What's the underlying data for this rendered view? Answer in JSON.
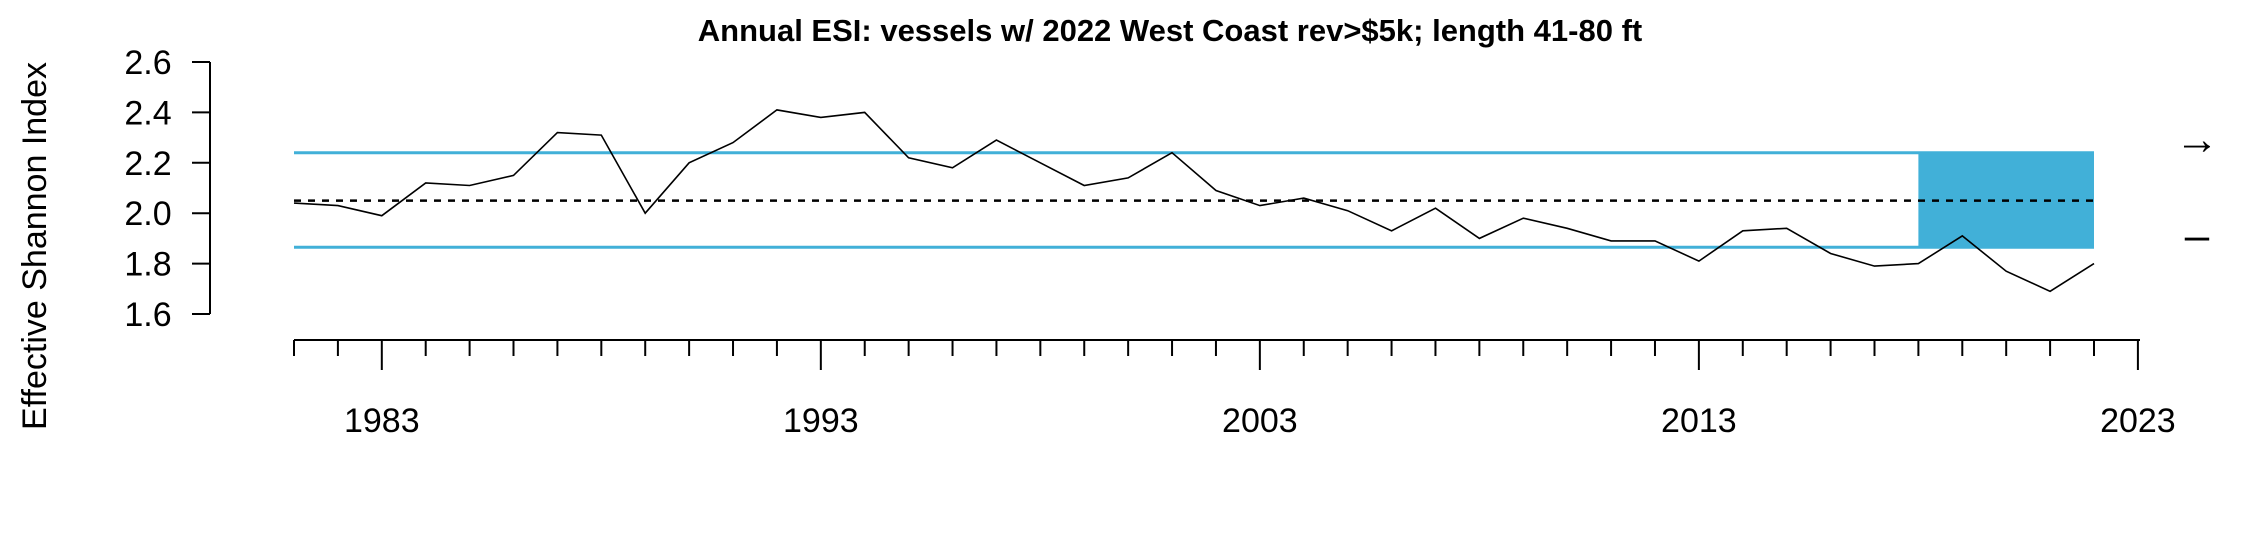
{
  "chart_data": {
    "type": "line",
    "title": "Annual ESI: vessels w/ 2022 West Coast rev>$5k; length 41-80 ft",
    "ylabel": "Effective Shannon Index",
    "xlabel": "",
    "ylim": [
      1.6,
      2.6
    ],
    "y_ticks": [
      "1.6",
      "1.8",
      "2.0",
      "2.2",
      "2.4",
      "2.6"
    ],
    "x_ticks": [
      "1983",
      "1993",
      "2003",
      "2013",
      "2023"
    ],
    "x": [
      1981,
      1982,
      1983,
      1984,
      1985,
      1986,
      1987,
      1988,
      1989,
      1990,
      1991,
      1992,
      1993,
      1994,
      1995,
      1996,
      1997,
      1998,
      1999,
      2000,
      2001,
      2002,
      2003,
      2004,
      2005,
      2006,
      2007,
      2008,
      2009,
      2010,
      2011,
      2012,
      2013,
      2014,
      2015,
      2016,
      2017,
      2018,
      2019,
      2020,
      2021,
      2022
    ],
    "series": [
      {
        "values": [
          2.04,
          2.03,
          1.99,
          2.12,
          2.11,
          2.15,
          2.32,
          2.31,
          2.0,
          2.2,
          2.28,
          2.41,
          2.38,
          2.4,
          2.22,
          2.18,
          2.29,
          2.2,
          2.11,
          2.14,
          2.24,
          2.09,
          2.03,
          2.06,
          2.01,
          1.93,
          2.02,
          1.9,
          1.98,
          1.94,
          1.89,
          1.89,
          1.81,
          1.93,
          1.94,
          1.84,
          1.79,
          1.8,
          1.91,
          1.77,
          1.69,
          1.8
        ],
        "color": "#000000"
      }
    ],
    "mean": 2.05,
    "upper_band": 2.24,
    "lower_band": 1.865,
    "highlight_x_range": [
      2018,
      2022
    ],
    "band_color": "#41b0d8",
    "trend_symbol": "→",
    "mean_symbol": "–"
  }
}
